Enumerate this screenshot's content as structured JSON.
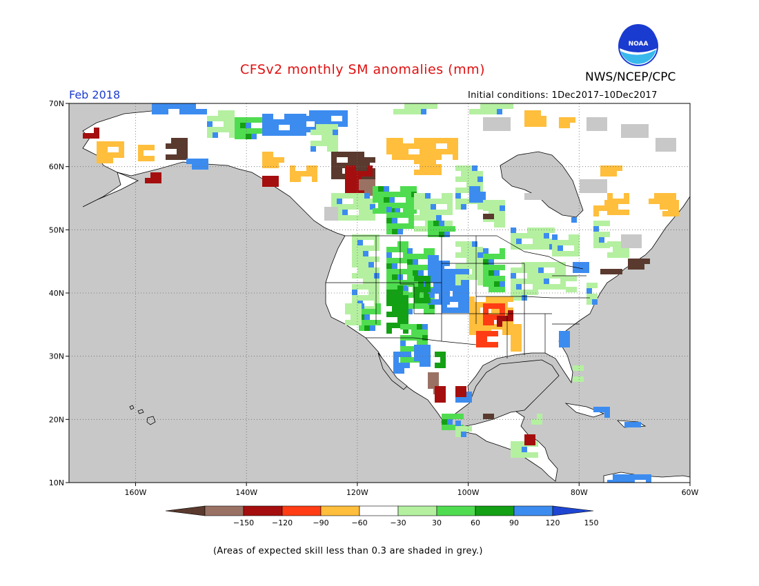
{
  "header": {
    "title": "CFSv2 monthly SM anomalies (mm)",
    "month": "Feb 2018",
    "agency": "NWS/NCEP/CPC",
    "logo_text": "NOAA",
    "initial_conditions": "Initial conditions: 1Dec2017–10Dec2017"
  },
  "map": {
    "lon_range": [
      -172,
      -60
    ],
    "lat_range": [
      10,
      70
    ],
    "lon_ticks": [
      {
        "value": -160,
        "label": "160W"
      },
      {
        "value": -140,
        "label": "140W"
      },
      {
        "value": -120,
        "label": "120W"
      },
      {
        "value": -100,
        "label": "100W"
      },
      {
        "value": -80,
        "label": "80W"
      },
      {
        "value": -60,
        "label": "60W"
      }
    ],
    "lat_ticks": [
      {
        "value": 70,
        "label": "70N"
      },
      {
        "value": 60,
        "label": "60N"
      },
      {
        "value": 50,
        "label": "50N"
      },
      {
        "value": 40,
        "label": "40N"
      },
      {
        "value": 30,
        "label": "30N"
      },
      {
        "value": 20,
        "label": "20N"
      },
      {
        "value": 10,
        "label": "10N"
      }
    ],
    "grid_lines": true,
    "ocean_color": "#c8c8c8",
    "low_skill_color": "#c8c8c8"
  },
  "colorbar": {
    "labels": [
      "−150",
      "−120",
      "−90",
      "−60",
      "−30",
      "30",
      "60",
      "90",
      "120",
      "150"
    ],
    "colors": [
      "#5a3a2e",
      "#9a7264",
      "#a50e0e",
      "#ff3c14",
      "#ffbe3c",
      "#ffffff",
      "#b4f0a0",
      "#50dc50",
      "#14a014",
      "#3c8cf0",
      "#1e46d2"
    ]
  },
  "footnote": "(Areas of expected skill less than 0.3 are shaded in grey.)"
}
